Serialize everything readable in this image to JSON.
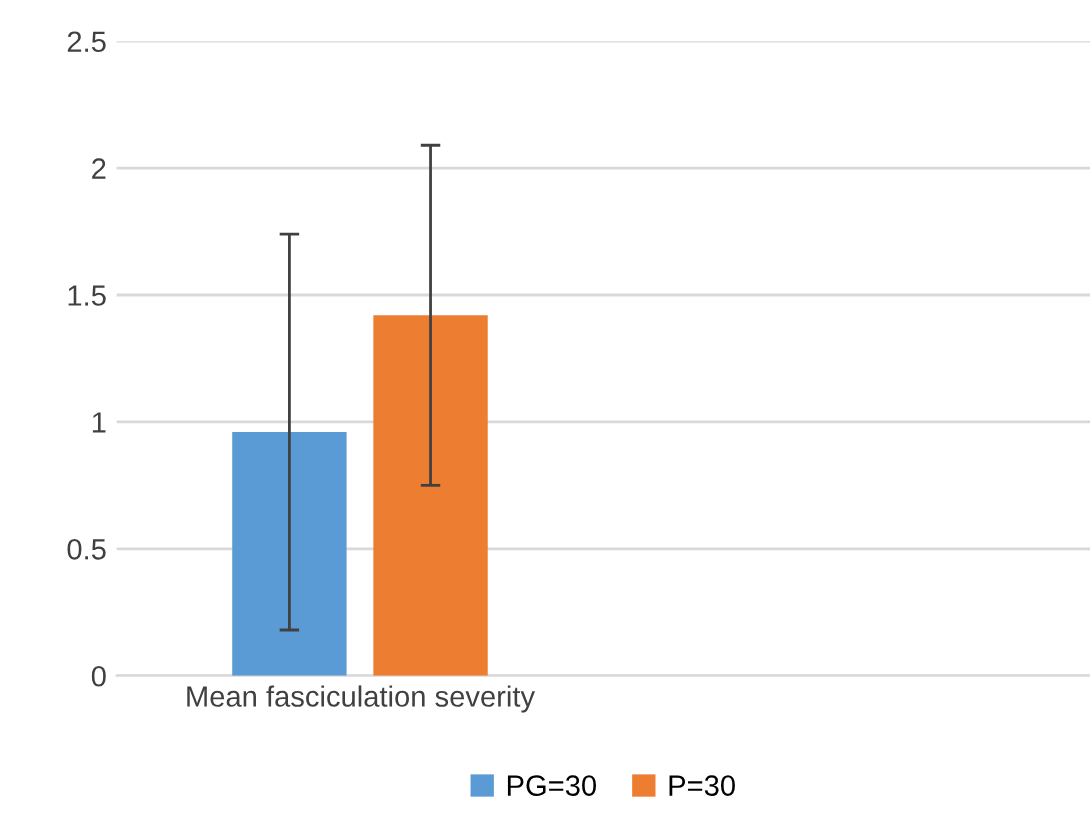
{
  "chart_data": {
    "type": "bar",
    "categories": [
      "Mean fasciculation severity",
      null
    ],
    "series": [
      {
        "name": "PG=30",
        "color": "#5b9bd5",
        "values": [
          0.96,
          null
        ],
        "errors": [
          0.78,
          null
        ]
      },
      {
        "name": "P=30",
        "color": "#ed7d31",
        "values": [
          1.42,
          null
        ],
        "errors": [
          0.67,
          null
        ]
      }
    ],
    "ylim": [
      0,
      2.5
    ],
    "yticks": [
      0,
      0.5,
      1,
      1.5,
      2,
      2.5
    ],
    "grid": "y",
    "legend": "bottom"
  }
}
